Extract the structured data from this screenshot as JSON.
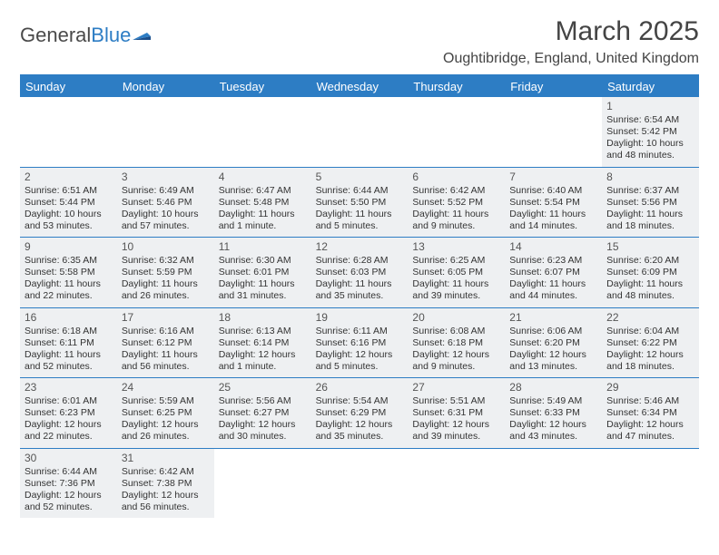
{
  "logo": {
    "textDark": "General",
    "textBlue": "Blue"
  },
  "title": "March 2025",
  "location": "Oughtibridge, England, United Kingdom",
  "colors": {
    "accent": "#2d7dc4",
    "cellFill": "#eef0f2",
    "text": "#333333",
    "headerText": "#ffffff"
  },
  "dayHeaders": [
    "Sunday",
    "Monday",
    "Tuesday",
    "Wednesday",
    "Thursday",
    "Friday",
    "Saturday"
  ],
  "weeks": [
    [
      null,
      null,
      null,
      null,
      null,
      null,
      {
        "num": "1",
        "sunrise": "Sunrise: 6:54 AM",
        "sunset": "Sunset: 5:42 PM",
        "daylight": "Daylight: 10 hours and 48 minutes."
      }
    ],
    [
      {
        "num": "2",
        "sunrise": "Sunrise: 6:51 AM",
        "sunset": "Sunset: 5:44 PM",
        "daylight": "Daylight: 10 hours and 53 minutes."
      },
      {
        "num": "3",
        "sunrise": "Sunrise: 6:49 AM",
        "sunset": "Sunset: 5:46 PM",
        "daylight": "Daylight: 10 hours and 57 minutes."
      },
      {
        "num": "4",
        "sunrise": "Sunrise: 6:47 AM",
        "sunset": "Sunset: 5:48 PM",
        "daylight": "Daylight: 11 hours and 1 minute."
      },
      {
        "num": "5",
        "sunrise": "Sunrise: 6:44 AM",
        "sunset": "Sunset: 5:50 PM",
        "daylight": "Daylight: 11 hours and 5 minutes."
      },
      {
        "num": "6",
        "sunrise": "Sunrise: 6:42 AM",
        "sunset": "Sunset: 5:52 PM",
        "daylight": "Daylight: 11 hours and 9 minutes."
      },
      {
        "num": "7",
        "sunrise": "Sunrise: 6:40 AM",
        "sunset": "Sunset: 5:54 PM",
        "daylight": "Daylight: 11 hours and 14 minutes."
      },
      {
        "num": "8",
        "sunrise": "Sunrise: 6:37 AM",
        "sunset": "Sunset: 5:56 PM",
        "daylight": "Daylight: 11 hours and 18 minutes."
      }
    ],
    [
      {
        "num": "9",
        "sunrise": "Sunrise: 6:35 AM",
        "sunset": "Sunset: 5:58 PM",
        "daylight": "Daylight: 11 hours and 22 minutes."
      },
      {
        "num": "10",
        "sunrise": "Sunrise: 6:32 AM",
        "sunset": "Sunset: 5:59 PM",
        "daylight": "Daylight: 11 hours and 26 minutes."
      },
      {
        "num": "11",
        "sunrise": "Sunrise: 6:30 AM",
        "sunset": "Sunset: 6:01 PM",
        "daylight": "Daylight: 11 hours and 31 minutes."
      },
      {
        "num": "12",
        "sunrise": "Sunrise: 6:28 AM",
        "sunset": "Sunset: 6:03 PM",
        "daylight": "Daylight: 11 hours and 35 minutes."
      },
      {
        "num": "13",
        "sunrise": "Sunrise: 6:25 AM",
        "sunset": "Sunset: 6:05 PM",
        "daylight": "Daylight: 11 hours and 39 minutes."
      },
      {
        "num": "14",
        "sunrise": "Sunrise: 6:23 AM",
        "sunset": "Sunset: 6:07 PM",
        "daylight": "Daylight: 11 hours and 44 minutes."
      },
      {
        "num": "15",
        "sunrise": "Sunrise: 6:20 AM",
        "sunset": "Sunset: 6:09 PM",
        "daylight": "Daylight: 11 hours and 48 minutes."
      }
    ],
    [
      {
        "num": "16",
        "sunrise": "Sunrise: 6:18 AM",
        "sunset": "Sunset: 6:11 PM",
        "daylight": "Daylight: 11 hours and 52 minutes."
      },
      {
        "num": "17",
        "sunrise": "Sunrise: 6:16 AM",
        "sunset": "Sunset: 6:12 PM",
        "daylight": "Daylight: 11 hours and 56 minutes."
      },
      {
        "num": "18",
        "sunrise": "Sunrise: 6:13 AM",
        "sunset": "Sunset: 6:14 PM",
        "daylight": "Daylight: 12 hours and 1 minute."
      },
      {
        "num": "19",
        "sunrise": "Sunrise: 6:11 AM",
        "sunset": "Sunset: 6:16 PM",
        "daylight": "Daylight: 12 hours and 5 minutes."
      },
      {
        "num": "20",
        "sunrise": "Sunrise: 6:08 AM",
        "sunset": "Sunset: 6:18 PM",
        "daylight": "Daylight: 12 hours and 9 minutes."
      },
      {
        "num": "21",
        "sunrise": "Sunrise: 6:06 AM",
        "sunset": "Sunset: 6:20 PM",
        "daylight": "Daylight: 12 hours and 13 minutes."
      },
      {
        "num": "22",
        "sunrise": "Sunrise: 6:04 AM",
        "sunset": "Sunset: 6:22 PM",
        "daylight": "Daylight: 12 hours and 18 minutes."
      }
    ],
    [
      {
        "num": "23",
        "sunrise": "Sunrise: 6:01 AM",
        "sunset": "Sunset: 6:23 PM",
        "daylight": "Daylight: 12 hours and 22 minutes."
      },
      {
        "num": "24",
        "sunrise": "Sunrise: 5:59 AM",
        "sunset": "Sunset: 6:25 PM",
        "daylight": "Daylight: 12 hours and 26 minutes."
      },
      {
        "num": "25",
        "sunrise": "Sunrise: 5:56 AM",
        "sunset": "Sunset: 6:27 PM",
        "daylight": "Daylight: 12 hours and 30 minutes."
      },
      {
        "num": "26",
        "sunrise": "Sunrise: 5:54 AM",
        "sunset": "Sunset: 6:29 PM",
        "daylight": "Daylight: 12 hours and 35 minutes."
      },
      {
        "num": "27",
        "sunrise": "Sunrise: 5:51 AM",
        "sunset": "Sunset: 6:31 PM",
        "daylight": "Daylight: 12 hours and 39 minutes."
      },
      {
        "num": "28",
        "sunrise": "Sunrise: 5:49 AM",
        "sunset": "Sunset: 6:33 PM",
        "daylight": "Daylight: 12 hours and 43 minutes."
      },
      {
        "num": "29",
        "sunrise": "Sunrise: 5:46 AM",
        "sunset": "Sunset: 6:34 PM",
        "daylight": "Daylight: 12 hours and 47 minutes."
      }
    ],
    [
      {
        "num": "30",
        "sunrise": "Sunrise: 6:44 AM",
        "sunset": "Sunset: 7:36 PM",
        "daylight": "Daylight: 12 hours and 52 minutes."
      },
      {
        "num": "31",
        "sunrise": "Sunrise: 6:42 AM",
        "sunset": "Sunset: 7:38 PM",
        "daylight": "Daylight: 12 hours and 56 minutes."
      },
      null,
      null,
      null,
      null,
      null
    ]
  ]
}
